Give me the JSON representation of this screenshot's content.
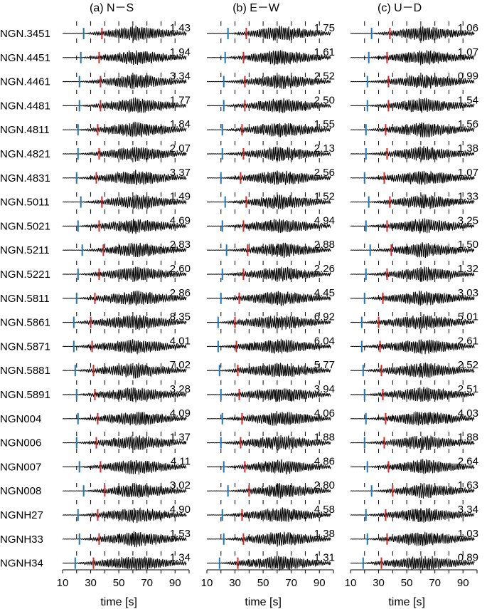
{
  "chart_data": {
    "type": "line",
    "description_hidden": false,
    "xlabel": "time [s]",
    "x_ticks": [
      10,
      30,
      50,
      70,
      90
    ],
    "xlim": [
      10,
      100
    ],
    "grid_vertical_dashed": [
      20,
      30,
      40,
      50,
      60,
      70,
      80,
      90
    ],
    "p_arrival_color": "#1f77b4",
    "s_arrival_color": "#d62728",
    "trace_color": "#000000",
    "stations": [
      "NGN.3451",
      "NGN.4451",
      "NGN.4461",
      "NGN.4481",
      "NGN.4811",
      "NGN.4821",
      "NGN.4831",
      "NGN.5011",
      "NGN.5021",
      "NGN.5211",
      "NGN.5221",
      "NGN.5811",
      "NGN.5861",
      "NGN.5871",
      "NGN.5881",
      "NGN.5891",
      "NGN004",
      "NGN006",
      "NGN007",
      "NGN008",
      "NGNH27",
      "NGNH33",
      "NGNH34"
    ],
    "panels": [
      {
        "title": "(a) N－S",
        "max_amplitudes": [
          "1.43",
          "1.94",
          "3.34",
          "1.77",
          "1.84",
          "2.07",
          "3.37",
          "1.49",
          "4.69",
          "2.83",
          "2.60",
          "2.86",
          "8.35",
          "4.01",
          "7.02",
          "3.28",
          "4.09",
          "1.37",
          "4.11",
          "3.02",
          "4.90",
          "1.53",
          "1.34"
        ]
      },
      {
        "title": "(b) E－W",
        "max_amplitudes": [
          "1.75",
          "1.61",
          "2.52",
          "2.50",
          "1.55",
          "2.13",
          "2.56",
          "1.52",
          "4.94",
          "2.88",
          "2.26",
          "4.45",
          "6.92",
          "6.04",
          "5.77",
          "3.94",
          "4.06",
          "1.88",
          "4.86",
          "2.80",
          "4.58",
          "1.38",
          "1.31"
        ]
      },
      {
        "title": "(c) U－D",
        "max_amplitudes": [
          "1.06",
          "1.07",
          "0.99",
          "1.54",
          "1.56",
          "1.38",
          "1.07",
          "1.33",
          "3.25",
          "1.50",
          "1.32",
          "3.03",
          "5.01",
          "2.61",
          "2.52",
          "2.51",
          "4.03",
          "1.88",
          "2.64",
          "1.63",
          "3.34",
          "1.03",
          "0.89"
        ]
      }
    ],
    "p_arrival_s": [
      25,
      23,
      22,
      22,
      21,
      21,
      20,
      23,
      21,
      24,
      21,
      20,
      18,
      18,
      19,
      20,
      21,
      20,
      22,
      25,
      21,
      22,
      19
    ],
    "s_arrival_s": [
      38,
      36,
      37,
      37,
      35,
      36,
      34,
      38,
      36,
      39,
      36,
      33,
      30,
      31,
      32,
      33,
      35,
      34,
      37,
      40,
      35,
      36,
      32
    ]
  }
}
